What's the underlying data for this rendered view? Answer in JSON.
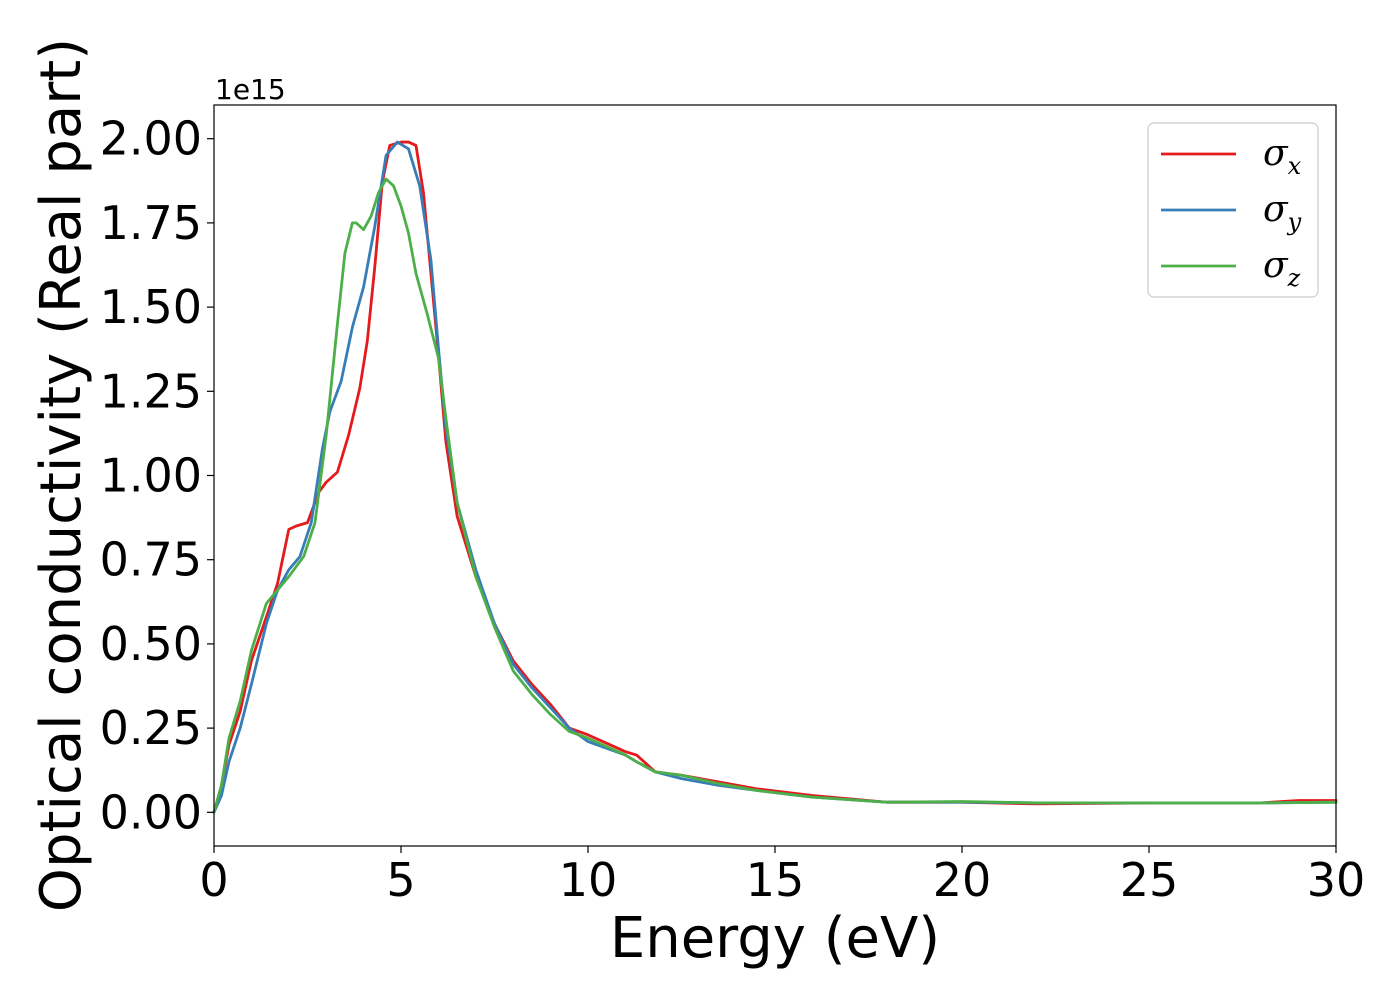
{
  "chart_data": {
    "type": "line",
    "xlabel": "Energy (eV)",
    "ylabel": "Optical conductivity (Real part)",
    "y_offset_label": "1e15",
    "xlim": [
      0,
      30
    ],
    "ylim": [
      -0.1,
      2.1
    ],
    "x_ticks": [
      "0",
      "5",
      "10",
      "15",
      "20",
      "25",
      "30"
    ],
    "y_ticks": [
      "0.00",
      "0.25",
      "0.50",
      "0.75",
      "1.00",
      "1.25",
      "1.50",
      "1.75",
      "2.00"
    ],
    "legend_position": "top-right",
    "grid": false,
    "series": [
      {
        "name": "σx",
        "symbol": "σ",
        "subscript": "x",
        "color": "#e41a1c",
        "points": [
          [
            0,
            0
          ],
          [
            0.2,
            0.08
          ],
          [
            0.4,
            0.2
          ],
          [
            0.7,
            0.3
          ],
          [
            1.0,
            0.45
          ],
          [
            1.4,
            0.58
          ],
          [
            1.7,
            0.68
          ],
          [
            2.0,
            0.84
          ],
          [
            2.2,
            0.85
          ],
          [
            2.5,
            0.86
          ],
          [
            2.8,
            0.95
          ],
          [
            3.0,
            0.98
          ],
          [
            3.3,
            1.01
          ],
          [
            3.6,
            1.12
          ],
          [
            3.9,
            1.26
          ],
          [
            4.1,
            1.4
          ],
          [
            4.3,
            1.62
          ],
          [
            4.5,
            1.87
          ],
          [
            4.7,
            1.98
          ],
          [
            5.0,
            1.99
          ],
          [
            5.2,
            1.99
          ],
          [
            5.4,
            1.98
          ],
          [
            5.6,
            1.84
          ],
          [
            5.8,
            1.6
          ],
          [
            6.0,
            1.36
          ],
          [
            6.2,
            1.1
          ],
          [
            6.5,
            0.88
          ],
          [
            7.0,
            0.7
          ],
          [
            7.5,
            0.56
          ],
          [
            8.0,
            0.45
          ],
          [
            8.5,
            0.38
          ],
          [
            9.0,
            0.32
          ],
          [
            9.5,
            0.25
          ],
          [
            10.0,
            0.23
          ],
          [
            11.0,
            0.18
          ],
          [
            11.3,
            0.17
          ],
          [
            11.8,
            0.12
          ],
          [
            12.5,
            0.11
          ],
          [
            13.5,
            0.09
          ],
          [
            14.5,
            0.07
          ],
          [
            16,
            0.05
          ],
          [
            18,
            0.03
          ],
          [
            20,
            0.03
          ],
          [
            22,
            0.025
          ],
          [
            25,
            0.028
          ],
          [
            28,
            0.028
          ],
          [
            29,
            0.035
          ],
          [
            30,
            0.035
          ]
        ]
      },
      {
        "name": "σy",
        "symbol": "σ",
        "subscript": "y",
        "color": "#377eb8",
        "points": [
          [
            0,
            0
          ],
          [
            0.2,
            0.05
          ],
          [
            0.4,
            0.15
          ],
          [
            0.7,
            0.25
          ],
          [
            1.0,
            0.38
          ],
          [
            1.4,
            0.56
          ],
          [
            1.7,
            0.66
          ],
          [
            2.0,
            0.72
          ],
          [
            2.3,
            0.76
          ],
          [
            2.6,
            0.86
          ],
          [
            2.9,
            1.08
          ],
          [
            3.1,
            1.19
          ],
          [
            3.4,
            1.28
          ],
          [
            3.7,
            1.44
          ],
          [
            4.0,
            1.56
          ],
          [
            4.3,
            1.74
          ],
          [
            4.6,
            1.95
          ],
          [
            4.9,
            1.99
          ],
          [
            5.2,
            1.97
          ],
          [
            5.5,
            1.86
          ],
          [
            5.8,
            1.64
          ],
          [
            6.0,
            1.38
          ],
          [
            6.2,
            1.14
          ],
          [
            6.5,
            0.92
          ],
          [
            7.0,
            0.72
          ],
          [
            7.5,
            0.56
          ],
          [
            8.0,
            0.44
          ],
          [
            8.5,
            0.37
          ],
          [
            9.0,
            0.31
          ],
          [
            9.5,
            0.25
          ],
          [
            10.0,
            0.21
          ],
          [
            11.0,
            0.17
          ],
          [
            11.3,
            0.15
          ],
          [
            11.8,
            0.12
          ],
          [
            12.5,
            0.1
          ],
          [
            13.5,
            0.08
          ],
          [
            14.5,
            0.065
          ],
          [
            16,
            0.045
          ],
          [
            18,
            0.03
          ],
          [
            20,
            0.03
          ],
          [
            22,
            0.028
          ],
          [
            25,
            0.028
          ],
          [
            28,
            0.028
          ],
          [
            30,
            0.03
          ]
        ]
      },
      {
        "name": "σz",
        "symbol": "σ",
        "subscript": "z",
        "color": "#4daf4a",
        "points": [
          [
            0,
            0
          ],
          [
            0.2,
            0.08
          ],
          [
            0.4,
            0.22
          ],
          [
            0.7,
            0.33
          ],
          [
            1.0,
            0.48
          ],
          [
            1.4,
            0.62
          ],
          [
            1.7,
            0.66
          ],
          [
            2.0,
            0.7
          ],
          [
            2.4,
            0.76
          ],
          [
            2.7,
            0.86
          ],
          [
            3.0,
            1.12
          ],
          [
            3.3,
            1.45
          ],
          [
            3.5,
            1.66
          ],
          [
            3.7,
            1.75
          ],
          [
            3.8,
            1.75
          ],
          [
            4.0,
            1.73
          ],
          [
            4.2,
            1.77
          ],
          [
            4.4,
            1.84
          ],
          [
            4.6,
            1.88
          ],
          [
            4.8,
            1.86
          ],
          [
            5.0,
            1.8
          ],
          [
            5.2,
            1.72
          ],
          [
            5.4,
            1.6
          ],
          [
            5.7,
            1.48
          ],
          [
            6.0,
            1.35
          ],
          [
            6.2,
            1.17
          ],
          [
            6.5,
            0.92
          ],
          [
            7.0,
            0.7
          ],
          [
            7.5,
            0.55
          ],
          [
            8.0,
            0.42
          ],
          [
            8.5,
            0.35
          ],
          [
            9.0,
            0.29
          ],
          [
            9.5,
            0.24
          ],
          [
            10.0,
            0.22
          ],
          [
            11.0,
            0.17
          ],
          [
            11.3,
            0.15
          ],
          [
            11.8,
            0.12
          ],
          [
            12.5,
            0.11
          ],
          [
            13.5,
            0.085
          ],
          [
            14.5,
            0.065
          ],
          [
            16,
            0.045
          ],
          [
            18,
            0.03
          ],
          [
            20,
            0.032
          ],
          [
            22,
            0.028
          ],
          [
            25,
            0.028
          ],
          [
            28,
            0.028
          ],
          [
            30,
            0.03
          ]
        ]
      }
    ]
  }
}
